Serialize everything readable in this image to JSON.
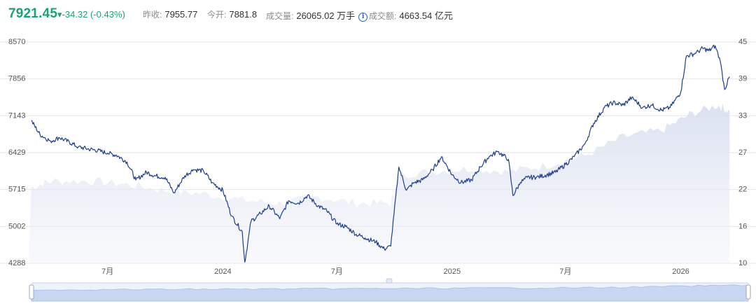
{
  "header": {
    "price": "7921.45",
    "change": "▾-34.32 (-0.43%)",
    "prev_close_label": "昨收:",
    "prev_close": "7955.77",
    "open_label": "今开:",
    "open": "7881.8",
    "volume_label": "成交量:",
    "volume": "26065.02 万手",
    "turnover_label": "成交额:",
    "turnover": "4663.54 亿元"
  },
  "colors": {
    "up_down_green": "#1aa36f",
    "price_line": "#1f3f8c",
    "volume_area": "#dfe4f2",
    "navigator": "#c9d6f2"
  },
  "chart_data": {
    "type": "line",
    "title": "",
    "xlabel": "",
    "ylabel": "",
    "left_ticks": [
      "8570",
      "7856",
      "7143",
      "6429",
      "5715",
      "5002",
      "4288"
    ],
    "right_ticks": [
      "45",
      "39",
      "33",
      "27",
      "22",
      "16",
      "10"
    ],
    "x_ticks": [
      "7月",
      "2024",
      "7月",
      "2025",
      "7月",
      "2026"
    ],
    "ylim_left": [
      4288,
      8570
    ],
    "ylim_right": [
      10,
      45
    ],
    "grid": true,
    "series": [
      {
        "type": "line",
        "axis": "left",
        "points": [
          [
            "2023-03-01",
            7050
          ],
          [
            "2023-03-15",
            6780
          ],
          [
            "2023-04-01",
            6650
          ],
          [
            "2023-04-15",
            6720
          ],
          [
            "2023-05-01",
            6630
          ],
          [
            "2023-05-15",
            6540
          ],
          [
            "2023-06-01",
            6500
          ],
          [
            "2023-06-15",
            6470
          ],
          [
            "2023-07-01",
            6420
          ],
          [
            "2023-07-15",
            6380
          ],
          [
            "2023-08-01",
            6250
          ],
          [
            "2023-08-15",
            5900
          ],
          [
            "2023-09-01",
            6050
          ],
          [
            "2023-09-15",
            5980
          ],
          [
            "2023-10-01",
            5950
          ],
          [
            "2023-10-15",
            5650
          ],
          [
            "2023-11-01",
            5980
          ],
          [
            "2023-11-15",
            6100
          ],
          [
            "2023-12-01",
            6080
          ],
          [
            "2023-12-15",
            5850
          ],
          [
            "2024-01-01",
            5700
          ],
          [
            "2024-01-15",
            5200
          ],
          [
            "2024-02-01",
            4900
          ],
          [
            "2024-02-05",
            4310
          ],
          [
            "2024-02-15",
            5100
          ],
          [
            "2024-03-01",
            5250
          ],
          [
            "2024-03-15",
            5400
          ],
          [
            "2024-04-01",
            5150
          ],
          [
            "2024-04-15",
            5500
          ],
          [
            "2024-05-01",
            5450
          ],
          [
            "2024-05-15",
            5600
          ],
          [
            "2024-06-01",
            5400
          ],
          [
            "2024-06-15",
            5300
          ],
          [
            "2024-07-01",
            5050
          ],
          [
            "2024-07-15",
            5000
          ],
          [
            "2024-08-01",
            4850
          ],
          [
            "2024-08-15",
            4780
          ],
          [
            "2024-09-01",
            4700
          ],
          [
            "2024-09-15",
            4560
          ],
          [
            "2024-09-25",
            4620
          ],
          [
            "2024-10-08",
            6150
          ],
          [
            "2024-10-20",
            5700
          ],
          [
            "2024-11-01",
            5850
          ],
          [
            "2024-11-15",
            5900
          ],
          [
            "2024-12-01",
            6100
          ],
          [
            "2024-12-15",
            6350
          ],
          [
            "2025-01-01",
            6000
          ],
          [
            "2025-01-15",
            5850
          ],
          [
            "2025-02-01",
            5900
          ],
          [
            "2025-02-15",
            6150
          ],
          [
            "2025-03-01",
            6350
          ],
          [
            "2025-03-15",
            6450
          ],
          [
            "2025-04-01",
            6300
          ],
          [
            "2025-04-08",
            5600
          ],
          [
            "2025-04-20",
            5850
          ],
          [
            "2025-05-01",
            5950
          ],
          [
            "2025-05-15",
            5950
          ],
          [
            "2025-06-01",
            6000
          ],
          [
            "2025-06-15",
            6050
          ],
          [
            "2025-07-01",
            6200
          ],
          [
            "2025-07-15",
            6350
          ],
          [
            "2025-08-01",
            6600
          ],
          [
            "2025-08-15",
            7000
          ],
          [
            "2025-09-01",
            7300
          ],
          [
            "2025-09-15",
            7400
          ],
          [
            "2025-10-01",
            7350
          ],
          [
            "2025-10-15",
            7500
          ],
          [
            "2025-11-01",
            7300
          ],
          [
            "2025-11-15",
            7350
          ],
          [
            "2025-12-01",
            7250
          ],
          [
            "2025-12-15",
            7300
          ],
          [
            "2026-01-01",
            7600
          ],
          [
            "2026-01-10",
            8300
          ],
          [
            "2026-01-25",
            8350
          ],
          [
            "2026-02-05",
            8450
          ],
          [
            "2026-02-15",
            8400
          ],
          [
            "2026-02-25",
            8500
          ],
          [
            "2026-03-05",
            8200
          ],
          [
            "2026-03-12",
            7650
          ],
          [
            "2026-03-20",
            7900
          ]
        ]
      },
      {
        "type": "area",
        "axis": "right",
        "points": [
          [
            "2023-03-01",
            22
          ],
          [
            "2023-04-01",
            23
          ],
          [
            "2023-06-01",
            23
          ],
          [
            "2023-08-01",
            22.5
          ],
          [
            "2023-10-01",
            21.5
          ],
          [
            "2023-12-01",
            21
          ],
          [
            "2024-02-01",
            20
          ],
          [
            "2024-04-01",
            19.5
          ],
          [
            "2024-06-01",
            20.5
          ],
          [
            "2024-08-01",
            19.5
          ],
          [
            "2024-09-25",
            19.5
          ],
          [
            "2024-10-08",
            24
          ],
          [
            "2024-12-01",
            24.5
          ],
          [
            "2025-02-01",
            25
          ],
          [
            "2025-04-01",
            24.5
          ],
          [
            "2025-06-01",
            25.5
          ],
          [
            "2025-08-01",
            27
          ],
          [
            "2025-10-01",
            30
          ],
          [
            "2025-12-01",
            31
          ],
          [
            "2026-01-15",
            33.5
          ],
          [
            "2026-03-01",
            35
          ],
          [
            "2026-03-20",
            34
          ]
        ]
      }
    ]
  }
}
